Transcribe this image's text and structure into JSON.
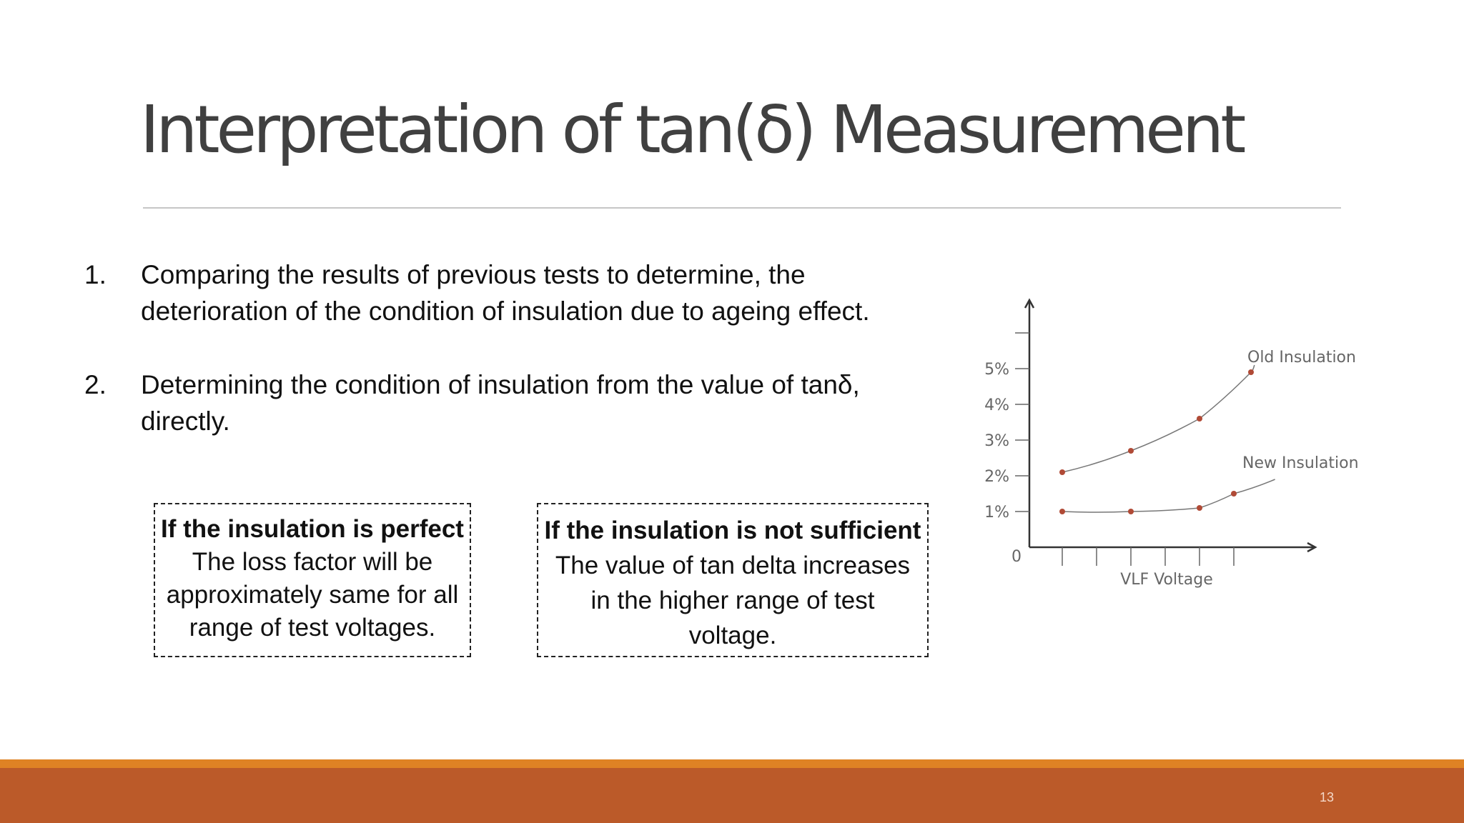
{
  "slide": {
    "title": "Interpretation of  tan(δ) Measurement",
    "page_number": "13",
    "points": [
      {
        "num": "1.",
        "lines": [
          "Comparing the results of previous tests to determine, the",
          "deterioration of the condition of insulation due to ageing effect."
        ]
      },
      {
        "num": "2.",
        "lines": [
          "Determining the condition of insulation from the value of tanδ,",
          "directly."
        ]
      }
    ],
    "boxes": [
      {
        "heading": "If the insulation is perfect",
        "lines": [
          "The loss factor will be",
          "approximately same for all",
          "range of test voltages."
        ]
      },
      {
        "heading": "If the insulation is not sufficient",
        "lines": [
          "The value of tan delta increases",
          "in the higher range of test",
          "voltage."
        ]
      }
    ],
    "colors": {
      "footer": "#bb5a29",
      "footer_stripe": "#df8224",
      "title": "#404040",
      "curve_points": "#b04a36"
    }
  },
  "chart_data": {
    "type": "line",
    "xlabel": "VLF Voltage",
    "ylabel": "",
    "origin_label": "0",
    "y_ticks": [
      "1%",
      "2%",
      "3%",
      "4%",
      "5%"
    ],
    "ylim": [
      0,
      6
    ],
    "x_ticks": [
      1,
      2,
      3,
      4,
      5,
      6
    ],
    "grid": false,
    "series": [
      {
        "name": "Old Insulation",
        "x": [
          1,
          3,
          5,
          6.5
        ],
        "y": [
          2.1,
          2.7,
          3.6,
          4.9
        ]
      },
      {
        "name": "New Insulation",
        "x": [
          1,
          3,
          5,
          6
        ],
        "y": [
          1.0,
          1.0,
          1.1,
          1.5
        ]
      }
    ]
  }
}
